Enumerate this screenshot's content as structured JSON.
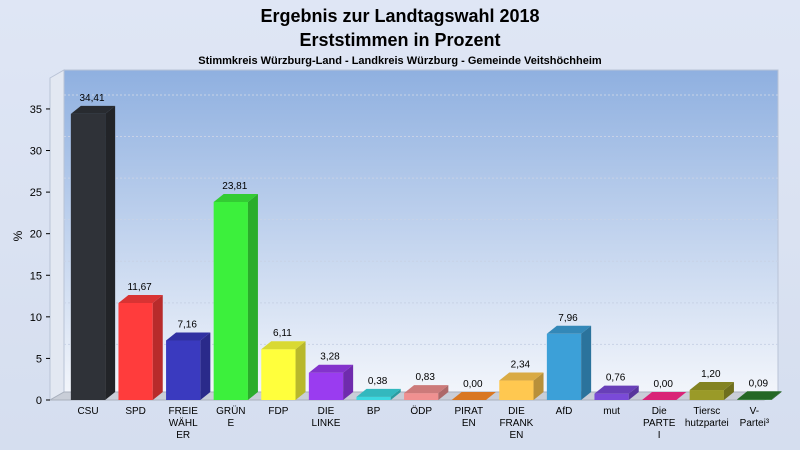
{
  "chart_data": {
    "type": "bar",
    "title": "Ergebnis zur Landtagswahl 2018",
    "title2": "Erststimmen in Prozent",
    "subtitle": "Stimmkreis Würzburg-Land - Landkreis Würzburg - Gemeinde Veitshöchheim",
    "ylabel": "%",
    "ylim": [
      0,
      38
    ],
    "yticks": [
      0,
      5,
      10,
      15,
      20,
      25,
      30,
      35
    ],
    "grid": true,
    "categories": [
      [
        "CSU"
      ],
      [
        "SPD"
      ],
      [
        "FREIE",
        "WÄHL",
        "ER"
      ],
      [
        "GRÜN",
        "E"
      ],
      [
        "FDP"
      ],
      [
        "DIE",
        "LINKE"
      ],
      [
        "BP"
      ],
      [
        "ÖDP"
      ],
      [
        "PIRAT",
        "EN"
      ],
      [
        "DIE",
        "FRANK",
        "EN"
      ],
      [
        "AfD"
      ],
      [
        "mut"
      ],
      [
        "Die",
        "PARTE",
        "I"
      ],
      [
        "Tiersc",
        "hutzpartei"
      ],
      [
        "V-",
        "Partei³"
      ]
    ],
    "values": [
      34.41,
      11.67,
      7.16,
      23.81,
      6.11,
      3.28,
      0.38,
      0.83,
      0.0,
      2.34,
      7.96,
      0.76,
      0.0,
      1.2,
      0.09
    ],
    "labels": [
      "34,41",
      "11,67",
      "7,16",
      "23,81",
      "6,11",
      "3,28",
      "0,38",
      "0,83",
      "0,00",
      "2,34",
      "7,96",
      "0,76",
      "0,00",
      "1,20",
      "0,09"
    ],
    "colors": [
      "#2f3238",
      "#ff3c3c",
      "#3a3abf",
      "#3cf03c",
      "#ffff3c",
      "#9a3cf0",
      "#3cd8e0",
      "#f09090",
      "#ff8c28",
      "#ffc850",
      "#3ca0d8",
      "#7a4ad8",
      "#ff2a8c",
      "#9a9a28",
      "#2a7a2a"
    ]
  }
}
